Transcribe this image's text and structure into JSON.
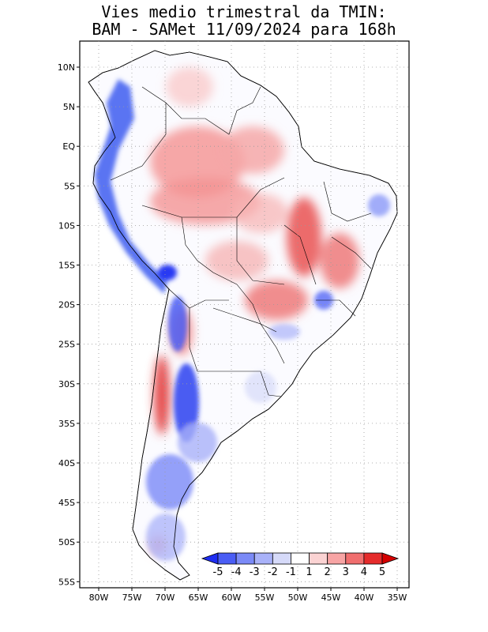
{
  "title": {
    "line1": "Vies medio trimestral da TMIN:",
    "line2": "BAM - SAMet 11/09/2024  para 168h"
  },
  "axes": {
    "lat_labels": [
      "10N",
      "5N",
      "EQ",
      "5S",
      "10S",
      "15S",
      "20S",
      "25S",
      "30S",
      "35S",
      "40S",
      "45S",
      "50S",
      "55S"
    ],
    "lon_labels": [
      "80W",
      "75W",
      "70W",
      "65W",
      "60W",
      "55W",
      "50W",
      "45W",
      "40W",
      "35W"
    ],
    "lon_range": [
      -83,
      -34
    ],
    "lat_range": [
      -56,
      12
    ],
    "grid": "dotted"
  },
  "colorbar": {
    "labels": [
      "-5",
      "-4",
      "-3",
      "-2",
      "-1",
      "1",
      "2",
      "3",
      "4",
      "5"
    ],
    "colors": [
      "#1f2ef2",
      "#4a5df5",
      "#7b8af7",
      "#a9b2f9",
      "#d6daf9",
      "#ffffff",
      "#fbd3d3",
      "#f7a4a4",
      "#f06e6e",
      "#e52b2b",
      "#d40000"
    ]
  },
  "map": {
    "land_color": "#ffffff",
    "warm_color": "#f28b8b",
    "cold_color": "#3d5cf0"
  }
}
